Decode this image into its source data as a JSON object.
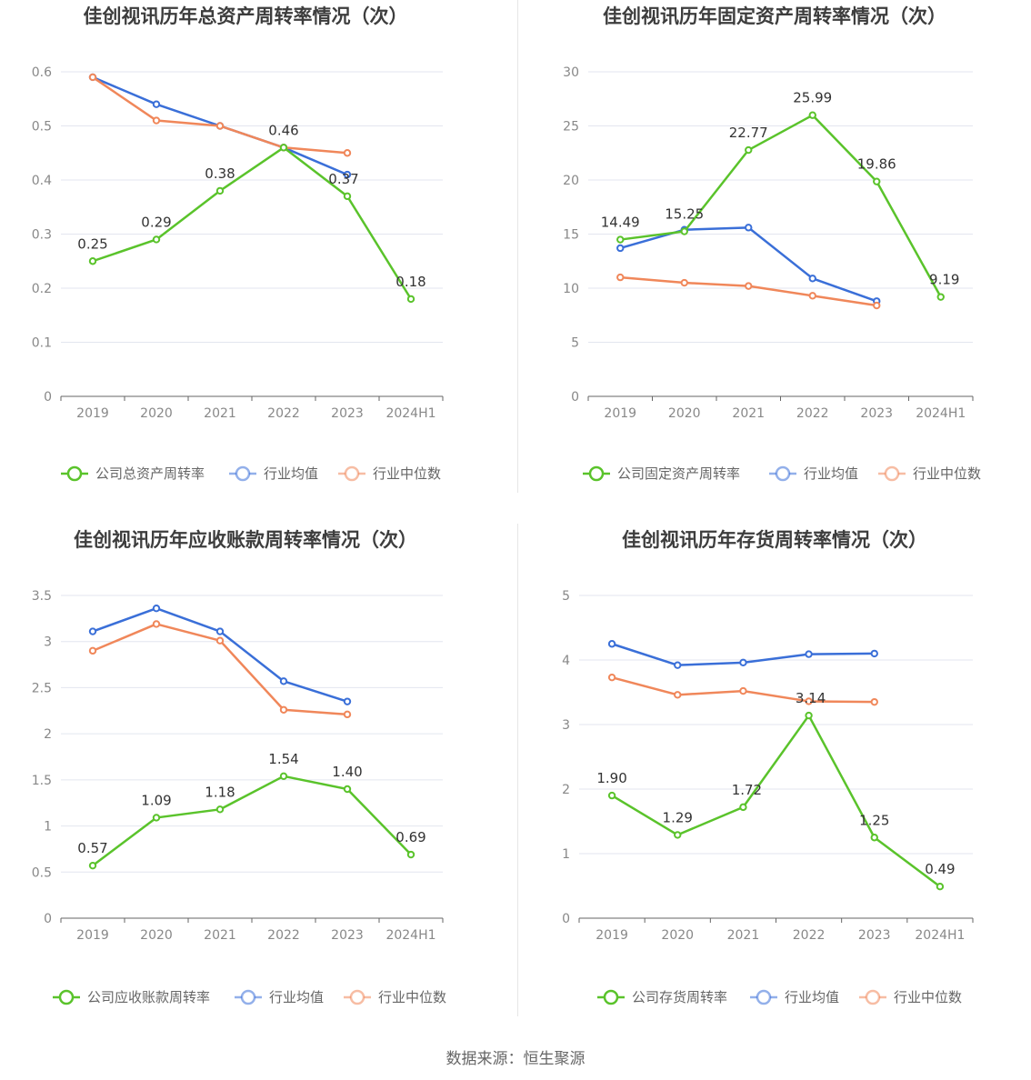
{
  "source_label": "数据来源：恒生聚源",
  "colors": {
    "company": "#5ac32b",
    "average": "#3a6fd8",
    "median": "#f0875a",
    "grid": "#e3e6ef",
    "axis": "#666666"
  },
  "chart_data": [
    {
      "type": "line",
      "title": "佳创视讯历年总资产周转率情况（次）",
      "categories": [
        "2019",
        "2020",
        "2021",
        "2022",
        "2023",
        "2024H1"
      ],
      "ylim": [
        0,
        0.6
      ],
      "yticks": [
        "0",
        "0.1",
        "0.2",
        "0.3",
        "0.4",
        "0.5",
        "0.6"
      ],
      "grid": true,
      "legend_position": "bottom",
      "series": [
        {
          "name": "公司总资产周转率",
          "role": "company",
          "values": [
            0.25,
            0.29,
            0.38,
            0.46,
            0.37,
            0.18
          ],
          "labels": [
            "0.25",
            "0.29",
            "0.38",
            "0.46",
            "0.37",
            "0.18"
          ]
        },
        {
          "name": "行业均值",
          "role": "average",
          "values": [
            0.59,
            0.54,
            0.5,
            0.46,
            0.41,
            null
          ]
        },
        {
          "name": "行业中位数",
          "role": "median",
          "values": [
            0.59,
            0.51,
            0.5,
            0.46,
            0.45,
            null
          ]
        }
      ]
    },
    {
      "type": "line",
      "title": "佳创视讯历年固定资产周转率情况（次）",
      "categories": [
        "2019",
        "2020",
        "2021",
        "2022",
        "2023",
        "2024H1"
      ],
      "ylim": [
        0,
        30
      ],
      "yticks": [
        "0",
        "5",
        "10",
        "15",
        "20",
        "25",
        "30"
      ],
      "grid": true,
      "legend_position": "bottom",
      "series": [
        {
          "name": "公司固定资产周转率",
          "role": "company",
          "values": [
            14.49,
            15.25,
            22.77,
            25.99,
            19.86,
            9.19
          ],
          "labels": [
            "14.49",
            "15.25",
            "22.77",
            "25.99",
            "19.86",
            "9.19"
          ]
        },
        {
          "name": "行业均值",
          "role": "average",
          "values": [
            13.7,
            15.4,
            15.6,
            10.9,
            8.8,
            null
          ]
        },
        {
          "name": "行业中位数",
          "role": "median",
          "values": [
            11.0,
            10.5,
            10.2,
            9.3,
            8.4,
            null
          ]
        }
      ]
    },
    {
      "type": "line",
      "title": "佳创视讯历年应收账款周转率情况（次）",
      "categories": [
        "2019",
        "2020",
        "2021",
        "2022",
        "2023",
        "2024H1"
      ],
      "ylim": [
        0,
        3.5
      ],
      "yticks": [
        "0",
        "0.5",
        "1",
        "1.5",
        "2",
        "2.5",
        "3",
        "3.5"
      ],
      "grid": true,
      "legend_position": "bottom",
      "series": [
        {
          "name": "公司应收账款周转率",
          "role": "company",
          "values": [
            0.57,
            1.09,
            1.18,
            1.54,
            1.4,
            0.69
          ],
          "labels": [
            "0.57",
            "1.09",
            "1.18",
            "1.54",
            "1.40",
            "0.69"
          ]
        },
        {
          "name": "行业均值",
          "role": "average",
          "values": [
            3.11,
            3.36,
            3.11,
            2.57,
            2.35,
            null
          ]
        },
        {
          "name": "行业中位数",
          "role": "median",
          "values": [
            2.9,
            3.19,
            3.01,
            2.26,
            2.21,
            null
          ]
        }
      ]
    },
    {
      "type": "line",
      "title": "佳创视讯历年存货周转率情况（次）",
      "categories": [
        "2019",
        "2020",
        "2021",
        "2022",
        "2023",
        "2024H1"
      ],
      "ylim": [
        0,
        5
      ],
      "yticks": [
        "0",
        "1",
        "2",
        "3",
        "4",
        "5"
      ],
      "grid": true,
      "legend_position": "bottom",
      "series": [
        {
          "name": "公司存货周转率",
          "role": "company",
          "values": [
            1.9,
            1.29,
            1.72,
            3.14,
            1.25,
            0.49
          ],
          "labels": [
            "1.90",
            "1.29",
            "1.72",
            "3.14",
            "1.25",
            "0.49"
          ]
        },
        {
          "name": "行业均值",
          "role": "average",
          "values": [
            4.25,
            3.92,
            3.96,
            4.09,
            4.1,
            null
          ]
        },
        {
          "name": "行业中位数",
          "role": "median",
          "values": [
            3.73,
            3.46,
            3.52,
            3.36,
            3.35,
            null
          ]
        }
      ]
    }
  ]
}
